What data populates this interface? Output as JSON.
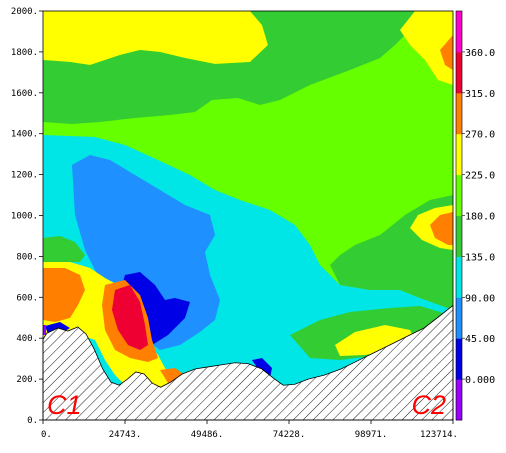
{
  "chart_data": {
    "type": "heatmap",
    "title": "",
    "xlabel": "",
    "ylabel": "",
    "xlim": [
      0,
      123714
    ],
    "ylim": [
      0,
      2000
    ],
    "x_ticks": [
      "0.",
      "24743.",
      "49486.",
      "74228.",
      "98971.",
      "123714."
    ],
    "x_tick_values": [
      0,
      24743,
      49486,
      74228,
      98971,
      123714
    ],
    "y_ticks": [
      "0.",
      "200.",
      "400.",
      "600.",
      "800.",
      "1000.",
      "1200.",
      "1400.",
      "1600.",
      "1800.",
      "2000."
    ],
    "y_tick_values": [
      0,
      200,
      400,
      600,
      800,
      1000,
      1200,
      1400,
      1600,
      1800,
      2000
    ],
    "colorbar": {
      "labels": [
        "0.000",
        "45.00",
        "90.00",
        "135.0",
        "180.0",
        "225.0",
        "270.0",
        "315.0",
        "360.0"
      ],
      "colors": [
        "#9900ff",
        "#0000e6",
        "#1e90ff",
        "#00e6e6",
        "#33cc33",
        "#66ff00",
        "#ffff00",
        "#ff7f00",
        "#ee0033",
        "#ff00cc"
      ]
    },
    "endpoints": {
      "left": "C1",
      "right": "C2"
    },
    "terrain": [
      [
        0,
        395
      ],
      [
        1200,
        425
      ],
      [
        4500,
        450
      ],
      [
        7500,
        435
      ],
      [
        10500,
        455
      ],
      [
        13000,
        420
      ],
      [
        15500,
        345
      ],
      [
        18000,
        250
      ],
      [
        20500,
        185
      ],
      [
        23000,
        170
      ],
      [
        25500,
        200
      ],
      [
        28000,
        235
      ],
      [
        30500,
        225
      ],
      [
        33000,
        180
      ],
      [
        35500,
        160
      ],
      [
        38500,
        185
      ],
      [
        42000,
        225
      ],
      [
        46000,
        250
      ],
      [
        50000,
        260
      ],
      [
        54000,
        270
      ],
      [
        58000,
        280
      ],
      [
        62000,
        275
      ],
      [
        66000,
        250
      ],
      [
        69500,
        205
      ],
      [
        72500,
        170
      ],
      [
        76000,
        175
      ],
      [
        80000,
        200
      ],
      [
        85000,
        220
      ],
      [
        90000,
        250
      ],
      [
        95000,
        290
      ],
      [
        100000,
        330
      ],
      [
        105000,
        370
      ],
      [
        110000,
        410
      ],
      [
        115000,
        450
      ],
      [
        119000,
        500
      ],
      [
        123714,
        560
      ]
    ]
  }
}
